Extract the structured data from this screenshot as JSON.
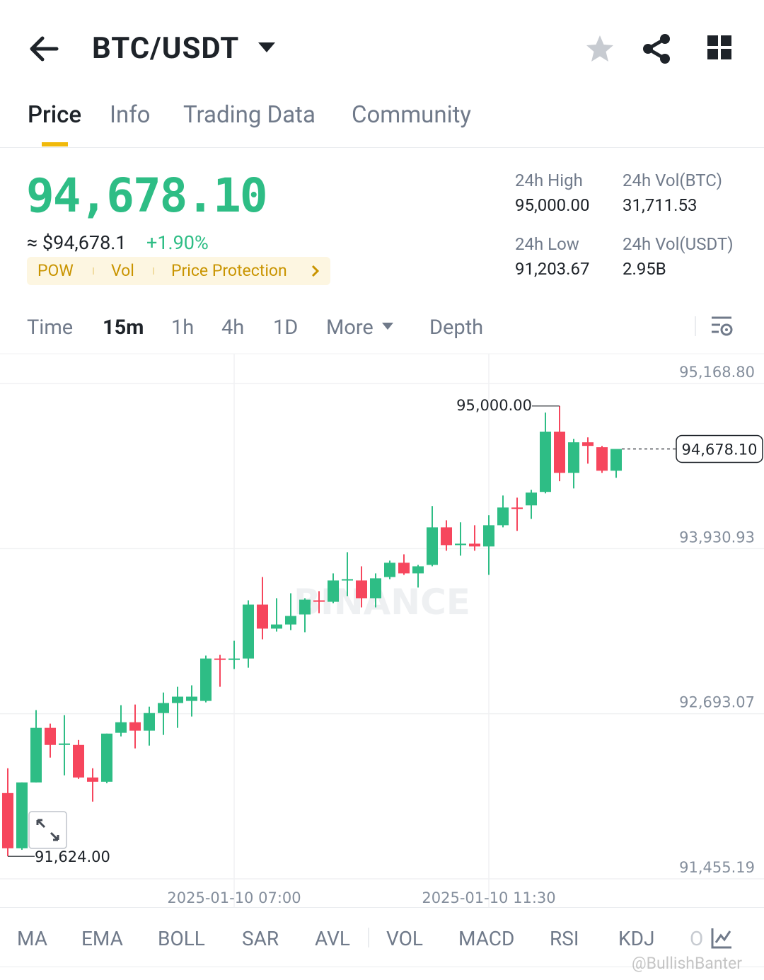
{
  "header": {
    "title": "BTC/USDT"
  },
  "tabs": [
    "Price",
    "Info",
    "Trading Data",
    "Community"
  ],
  "ticker": {
    "price": "94,678.10",
    "approx": "≈ $94,678.1",
    "change": "+1.90%",
    "tags": [
      "POW",
      "Vol",
      "Price Protection"
    ],
    "stats": [
      {
        "label": "24h High",
        "value": "95,000.00"
      },
      {
        "label": "24h Vol(BTC)",
        "value": "31,711.53"
      },
      {
        "label": "24h Low",
        "value": "91,203.67"
      },
      {
        "label": "24h Vol(USDT)",
        "value": "2.95B"
      }
    ]
  },
  "intervals": [
    "Time",
    "15m",
    "1h",
    "4h",
    "1D",
    "More",
    "Depth"
  ],
  "indicators": [
    "MA",
    "EMA",
    "BOLL",
    "SAR",
    "AVL",
    "VOL",
    "MACD",
    "RSI",
    "KDJ",
    "O"
  ],
  "watermark": "@BullishBanter",
  "chart_data": {
    "type": "candlestick",
    "watermark": "BINANCE",
    "categories": [
      null,
      null,
      null,
      null,
      null,
      null,
      null,
      null,
      null,
      null,
      null,
      null,
      null,
      null,
      null,
      null,
      "2025-01-10 07:00",
      null,
      null,
      null,
      null,
      null,
      null,
      null,
      null,
      null,
      null,
      null,
      null,
      null,
      null,
      null,
      null,
      null,
      "2025-01-10 11:30",
      null,
      null,
      null,
      null,
      null,
      null,
      null,
      null,
      null
    ],
    "open": [
      92098,
      91684,
      92178,
      92587,
      92459,
      92459,
      92215,
      92183,
      92550,
      92629,
      92566,
      92698,
      92773,
      92789,
      92789,
      93107,
      93097,
      93107,
      93511,
      93331,
      93362,
      93437,
      93543,
      93532,
      93692,
      93692,
      93559,
      93718,
      93825,
      93745,
      93809,
      94090,
      93957,
      93968,
      93947,
      94106,
      94239,
      94255,
      94356,
      94808,
      94499,
      94728,
      94691,
      94515
    ],
    "high": [
      92284,
      92178,
      92720,
      92619,
      92682,
      92496,
      92284,
      92544,
      92757,
      92762,
      92746,
      92852,
      92895,
      92906,
      93129,
      93134,
      93240,
      93543,
      93718,
      93559,
      93596,
      93559,
      93612,
      93745,
      93904,
      93798,
      93745,
      93841,
      93888,
      93809,
      94250,
      94143,
      94128,
      94106,
      94181,
      94329,
      94313,
      94372,
      94951,
      95000,
      94754,
      94765,
      94701,
      94678.1
    ],
    "low": [
      91624,
      91673,
      92178,
      92364,
      92231,
      92204,
      92034,
      92172,
      92523,
      92433,
      92454,
      92534,
      92587,
      92672,
      92778,
      92895,
      93028,
      93038,
      93251,
      93309,
      93320,
      93304,
      93447,
      93522,
      93575,
      93490,
      93490,
      93702,
      93734,
      93639,
      93798,
      93915,
      93878,
      93915,
      93734,
      94090,
      94064,
      94154,
      94345,
      94436,
      94382,
      94568,
      94499,
      94462
    ],
    "close": [
      91684,
      92178,
      92587,
      92459,
      92470,
      92215,
      92183,
      92544,
      92629,
      92566,
      92698,
      92773,
      92821,
      92821,
      93107,
      93097,
      93107,
      93511,
      93331,
      93362,
      93426,
      93548,
      93532,
      93692,
      93702,
      93559,
      93708,
      93825,
      93745,
      93798,
      94090,
      93957,
      93968,
      93947,
      94106,
      94239,
      94239,
      94351,
      94808,
      94499,
      94728,
      94701,
      94515,
      94678.1
    ],
    "colors": {
      "up": "#2ebd85",
      "down": "#f6465d"
    },
    "ylim": [
      91455.19,
      95168.8
    ],
    "yticks": [
      {
        "value": 95168.8,
        "label": "95,168.80"
      },
      {
        "value": 93930.93,
        "label": "93,930.93"
      },
      {
        "value": 92693.07,
        "label": "92,693.07"
      },
      {
        "value": 91455.19,
        "label": "91,455.19"
      }
    ],
    "grid": true,
    "annotations": [
      {
        "kind": "high",
        "label": "95,000.00",
        "value": 95000
      },
      {
        "kind": "low",
        "label": "91,624.00",
        "value": 91624
      },
      {
        "kind": "last",
        "label": "94,678.10",
        "value": 94678.1
      }
    ]
  }
}
